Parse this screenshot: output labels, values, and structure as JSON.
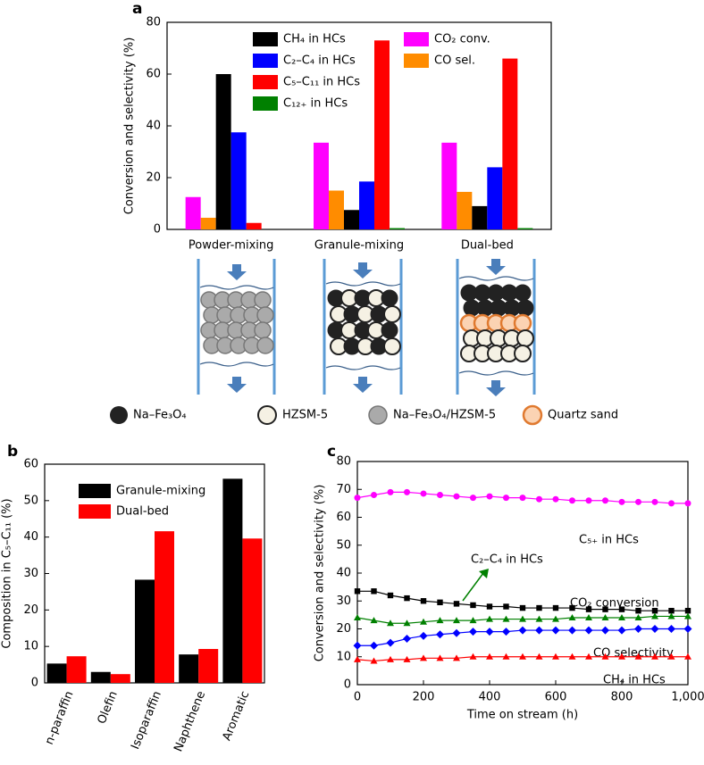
{
  "chart_data": [
    {
      "type": "bar",
      "panel_label": "a",
      "ylabel": "Conversion and selectivity (%)",
      "categories": [
        "Powder-mixing",
        "Granule-mixing",
        "Dual-bed"
      ],
      "series": [
        {
          "name": "CO₂ conv.",
          "color": "#ff00ff",
          "values": [
            12.5,
            33.5,
            33.5
          ]
        },
        {
          "name": "CO sel.",
          "color": "#ff8c00",
          "values": [
            4.5,
            15,
            14.5
          ]
        },
        {
          "name": "CH₄ in HCs",
          "color": "#000000",
          "values": [
            60,
            7.5,
            9
          ]
        },
        {
          "name": "C₂–C₄ in HCs",
          "color": "#0000ff",
          "values": [
            37.5,
            18.5,
            24
          ]
        },
        {
          "name": "C₅–C₁₁ in HCs",
          "color": "#ff0000",
          "values": [
            2.5,
            73,
            66
          ]
        },
        {
          "name": "C₁₂₊ in HCs",
          "color": "#008000",
          "values": [
            0,
            0.5,
            0.5
          ]
        }
      ],
      "ylim": [
        0,
        80
      ],
      "yticks": [
        0,
        20,
        40,
        60,
        80
      ]
    },
    {
      "type": "bar",
      "panel_label": "b",
      "ylabel": "Composition in C₅–C₁₁ (%)",
      "categories": [
        "n-paraffin",
        "Olefin",
        "Isoparaffin",
        "Naphthene",
        "Aromatic"
      ],
      "series": [
        {
          "name": "Granule-mixing",
          "color": "#000000",
          "values": [
            5.3,
            3,
            28.3,
            7.8,
            56
          ]
        },
        {
          "name": "Dual-bed",
          "color": "#ff0000",
          "values": [
            7.3,
            2.4,
            41.6,
            9.3,
            39.6
          ]
        }
      ],
      "ylim": [
        0,
        60
      ],
      "yticks": [
        0,
        10,
        20,
        30,
        40,
        50,
        60
      ]
    },
    {
      "type": "line",
      "panel_label": "c",
      "xlabel": "Time on stream (h)",
      "ylabel": "Conversion and selectivity (%)",
      "x": [
        0,
        50,
        100,
        150,
        200,
        250,
        300,
        350,
        400,
        450,
        500,
        550,
        600,
        650,
        700,
        750,
        800,
        850,
        900,
        950,
        1000
      ],
      "series": [
        {
          "name": "C₅₊ in HCs",
          "color": "#ff00ff",
          "marker": "circle",
          "values": [
            67,
            68,
            69,
            69,
            68.5,
            68,
            67.5,
            67,
            67.5,
            67,
            67,
            66.5,
            66.5,
            66,
            66,
            66,
            65.5,
            65.5,
            65.5,
            65,
            65
          ]
        },
        {
          "name": "CO₂ conversion",
          "color": "#000000",
          "marker": "square",
          "values": [
            33.5,
            33.5,
            32,
            31,
            30,
            29.5,
            29,
            28.5,
            28,
            28,
            27.5,
            27.5,
            27.5,
            27.5,
            27,
            27,
            27,
            26.5,
            26.5,
            26.5,
            26.5
          ]
        },
        {
          "name": "C₂–C₄ in HCs",
          "color": "#008000",
          "marker": "triangle",
          "values": [
            24,
            23,
            22,
            22,
            22.5,
            23,
            23,
            23,
            23.5,
            23.5,
            23.5,
            23.5,
            23.5,
            24,
            24,
            24,
            24,
            24,
            24.5,
            24.5,
            24.5
          ]
        },
        {
          "name": "CO selectivity",
          "color": "#0000ff",
          "marker": "diamond",
          "values": [
            14,
            14,
            15,
            16.5,
            17.5,
            18,
            18.5,
            19,
            19,
            19,
            19.5,
            19.5,
            19.5,
            19.5,
            19.5,
            19.5,
            19.5,
            20,
            20,
            20,
            20
          ]
        },
        {
          "name": "CH₄ in HCs",
          "color": "#ff0000",
          "marker": "triangle",
          "values": [
            9,
            8.5,
            9,
            9,
            9.5,
            9.5,
            9.5,
            10,
            10,
            10,
            10,
            10,
            10,
            10,
            10,
            10,
            10,
            10,
            10,
            10,
            10
          ]
        }
      ],
      "xlim": [
        0,
        1000
      ],
      "xticks": [
        0,
        200,
        400,
        600,
        800,
        {
          "value": 1000,
          "label": "1,000"
        }
      ],
      "ylim": [
        0,
        80
      ],
      "yticks": [
        0,
        10,
        20,
        30,
        40,
        50,
        60,
        70,
        80
      ]
    }
  ],
  "diagram": {
    "legend": [
      "Na–Fe₃O₄",
      "HZSM-5",
      "Na–Fe₃O₄/HZSM-5",
      "Quartz sand"
    ]
  }
}
